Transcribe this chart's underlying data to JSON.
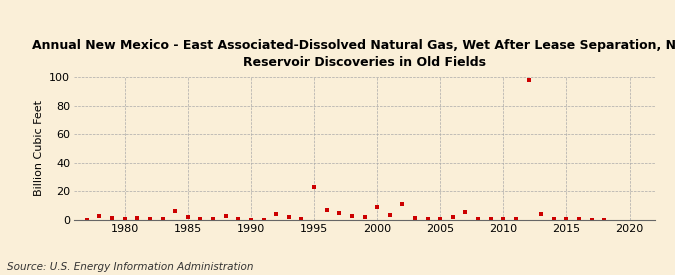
{
  "title": "Annual New Mexico - East Associated-Dissolved Natural Gas, Wet After Lease Separation, New\nReservoir Discoveries in Old Fields",
  "ylabel": "Billion Cubic Feet",
  "source": "Source: U.S. Energy Information Administration",
  "background_color": "#faefd8",
  "marker_color": "#cc0000",
  "xlim": [
    1976,
    2022
  ],
  "ylim": [
    0,
    100
  ],
  "yticks": [
    0,
    20,
    40,
    60,
    80,
    100
  ],
  "xticks": [
    1980,
    1985,
    1990,
    1995,
    2000,
    2005,
    2010,
    2015,
    2020
  ],
  "years": [
    1977,
    1978,
    1979,
    1980,
    1981,
    1982,
    1983,
    1984,
    1985,
    1986,
    1987,
    1988,
    1989,
    1990,
    1991,
    1992,
    1993,
    1994,
    1995,
    1996,
    1997,
    1998,
    1999,
    2000,
    2001,
    2002,
    2003,
    2004,
    2005,
    2006,
    2007,
    2008,
    2009,
    2010,
    2011,
    2012,
    2013,
    2014,
    2015,
    2016,
    2017,
    2018
  ],
  "values": [
    0.1,
    2.5,
    1.5,
    1.0,
    1.2,
    1.0,
    1.0,
    6.0,
    2.0,
    1.0,
    0.5,
    3.0,
    1.0,
    0.0,
    0.2,
    4.5,
    2.0,
    1.0,
    23.0,
    7.0,
    5.0,
    3.0,
    2.0,
    9.0,
    3.5,
    11.5,
    1.5,
    1.0,
    1.0,
    2.0,
    5.5,
    1.0,
    0.5,
    1.0,
    0.5,
    98.0,
    4.5,
    1.0,
    1.0,
    0.5,
    0.2,
    0.1
  ],
  "title_fontsize": 9,
  "tick_fontsize": 8,
  "ylabel_fontsize": 8,
  "source_fontsize": 7.5
}
